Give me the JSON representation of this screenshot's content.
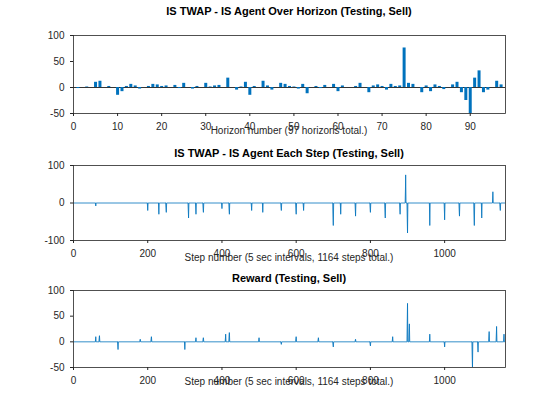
{
  "chart_data": [
    {
      "type": "bar",
      "title": "IS TWAP - IS Agent Over Horizon (Testing, Sell)",
      "x_label": "Horizon number (97 horizons total.)",
      "color": "#0072BD",
      "x": [
        1,
        2,
        3,
        4,
        5,
        6,
        7,
        8,
        9,
        10,
        11,
        12,
        13,
        14,
        15,
        16,
        17,
        18,
        19,
        20,
        21,
        22,
        23,
        24,
        25,
        26,
        27,
        28,
        29,
        30,
        31,
        32,
        33,
        34,
        35,
        36,
        37,
        38,
        39,
        40,
        41,
        42,
        43,
        44,
        45,
        46,
        47,
        48,
        49,
        50,
        51,
        52,
        53,
        54,
        55,
        56,
        57,
        58,
        59,
        60,
        61,
        62,
        63,
        64,
        65,
        66,
        67,
        68,
        69,
        70,
        71,
        72,
        73,
        74,
        75,
        76,
        77,
        78,
        79,
        80,
        81,
        82,
        83,
        84,
        85,
        86,
        87,
        88,
        89,
        90,
        91,
        92,
        93,
        94,
        95,
        96,
        97
      ],
      "values": [
        -2,
        0,
        1,
        0,
        10,
        12,
        0,
        2,
        0,
        -15,
        -8,
        2,
        6,
        3,
        -3,
        0,
        2,
        6,
        5,
        2,
        3,
        0,
        4,
        -2,
        8,
        0,
        -3,
        2,
        0,
        8,
        1,
        3,
        4,
        0,
        18,
        0,
        -5,
        1,
        10,
        -15,
        2,
        0,
        12,
        3,
        -5,
        0,
        8,
        6,
        2,
        1,
        -3,
        6,
        -12,
        0,
        2,
        -2,
        4,
        0,
        6,
        -8,
        3,
        0,
        0,
        2,
        8,
        0,
        -10,
        3,
        5,
        2,
        -5,
        6,
        2,
        3,
        76,
        8,
        6,
        0,
        -10,
        3,
        -8,
        5,
        2,
        -4,
        0,
        5,
        10,
        -10,
        -25,
        -50,
        18,
        32,
        -10,
        -5,
        0,
        12,
        5
      ],
      "xlim": [
        0,
        98
      ],
      "xticks": [
        0,
        10,
        20,
        30,
        40,
        50,
        60,
        70,
        80,
        90
      ],
      "ylim": [
        -50,
        100
      ],
      "yticks": [
        -50,
        0,
        50,
        100
      ],
      "grid": false
    },
    {
      "type": "line",
      "title": "IS TWAP - IS Agent Each Step (Testing, Sell)",
      "x_label": "Step number (5 sec intervals, 1164 steps total.)",
      "color": "#0072BD",
      "x": [
        0,
        59,
        60,
        61,
        199,
        200,
        201,
        229,
        230,
        231,
        249,
        250,
        251,
        309,
        310,
        311,
        329,
        330,
        331,
        349,
        350,
        351,
        399,
        400,
        401,
        419,
        420,
        421,
        479,
        480,
        481,
        509,
        510,
        511,
        559,
        560,
        561,
        599,
        600,
        601,
        619,
        620,
        621,
        699,
        700,
        701,
        719,
        720,
        721,
        759,
        760,
        761,
        799,
        800,
        801,
        839,
        840,
        841,
        879,
        880,
        881,
        894,
        895,
        896,
        899,
        900,
        901,
        959,
        960,
        961,
        999,
        1000,
        1001,
        1039,
        1040,
        1041,
        1079,
        1080,
        1081,
        1099,
        1100,
        1101,
        1129,
        1130,
        1131,
        1149,
        1150,
        1151,
        1164
      ],
      "values": [
        0,
        0,
        -8,
        0,
        0,
        -20,
        0,
        0,
        -30,
        0,
        0,
        -25,
        0,
        0,
        -40,
        0,
        0,
        -30,
        0,
        0,
        -25,
        0,
        0,
        -15,
        0,
        0,
        -30,
        0,
        0,
        -20,
        0,
        0,
        -25,
        0,
        0,
        -20,
        0,
        0,
        -30,
        0,
        0,
        -20,
        0,
        0,
        -60,
        0,
        0,
        -30,
        0,
        0,
        -35,
        0,
        0,
        -25,
        0,
        0,
        -40,
        0,
        0,
        -30,
        0,
        0,
        75,
        0,
        0,
        -80,
        0,
        0,
        -60,
        0,
        0,
        -45,
        0,
        0,
        -35,
        0,
        0,
        -60,
        0,
        0,
        -40,
        0,
        0,
        30,
        0,
        0,
        -20,
        0,
        0
      ],
      "xlim": [
        0,
        1164
      ],
      "xticks": [
        0,
        200,
        400,
        600,
        800,
        1000
      ],
      "ylim": [
        -100,
        100
      ],
      "yticks": [
        -100,
        0,
        100
      ],
      "grid": false
    },
    {
      "type": "line",
      "title": "Reward (Testing, Sell)",
      "x_label": "Step number (5 sec intervals, 1164 steps total.)",
      "color": "#0072BD",
      "x": [
        0,
        59,
        60,
        61,
        69,
        70,
        71,
        119,
        120,
        121,
        179,
        180,
        181,
        209,
        210,
        211,
        299,
        300,
        301,
        329,
        330,
        331,
        349,
        350,
        351,
        409,
        410,
        411,
        419,
        420,
        421,
        499,
        500,
        501,
        559,
        560,
        561,
        599,
        600,
        601,
        659,
        660,
        661,
        699,
        700,
        701,
        759,
        760,
        761,
        799,
        800,
        801,
        859,
        860,
        861,
        899,
        900,
        901,
        904,
        905,
        906,
        959,
        960,
        961,
        999,
        1000,
        1001,
        1074,
        1075,
        1076,
        1089,
        1090,
        1091,
        1119,
        1120,
        1121,
        1139,
        1140,
        1141,
        1159,
        1160,
        1161,
        1164
      ],
      "values": [
        0,
        0,
        10,
        0,
        0,
        12,
        0,
        0,
        -15,
        0,
        0,
        5,
        0,
        0,
        10,
        0,
        0,
        -15,
        0,
        0,
        8,
        0,
        0,
        8,
        0,
        0,
        15,
        0,
        0,
        18,
        0,
        0,
        8,
        0,
        0,
        -5,
        0,
        0,
        10,
        0,
        0,
        8,
        0,
        0,
        -10,
        0,
        0,
        5,
        0,
        0,
        -8,
        0,
        0,
        10,
        0,
        0,
        75,
        0,
        0,
        35,
        0,
        0,
        15,
        0,
        0,
        -10,
        0,
        0,
        -50,
        0,
        0,
        -20,
        0,
        0,
        20,
        0,
        0,
        30,
        0,
        0,
        15,
        0,
        0
      ],
      "xlim": [
        0,
        1164
      ],
      "xticks": [
        0,
        200,
        400,
        600,
        800,
        1000
      ],
      "ylim": [
        -50,
        100
      ],
      "yticks": [
        -50,
        0,
        50,
        100
      ],
      "grid": false
    }
  ]
}
